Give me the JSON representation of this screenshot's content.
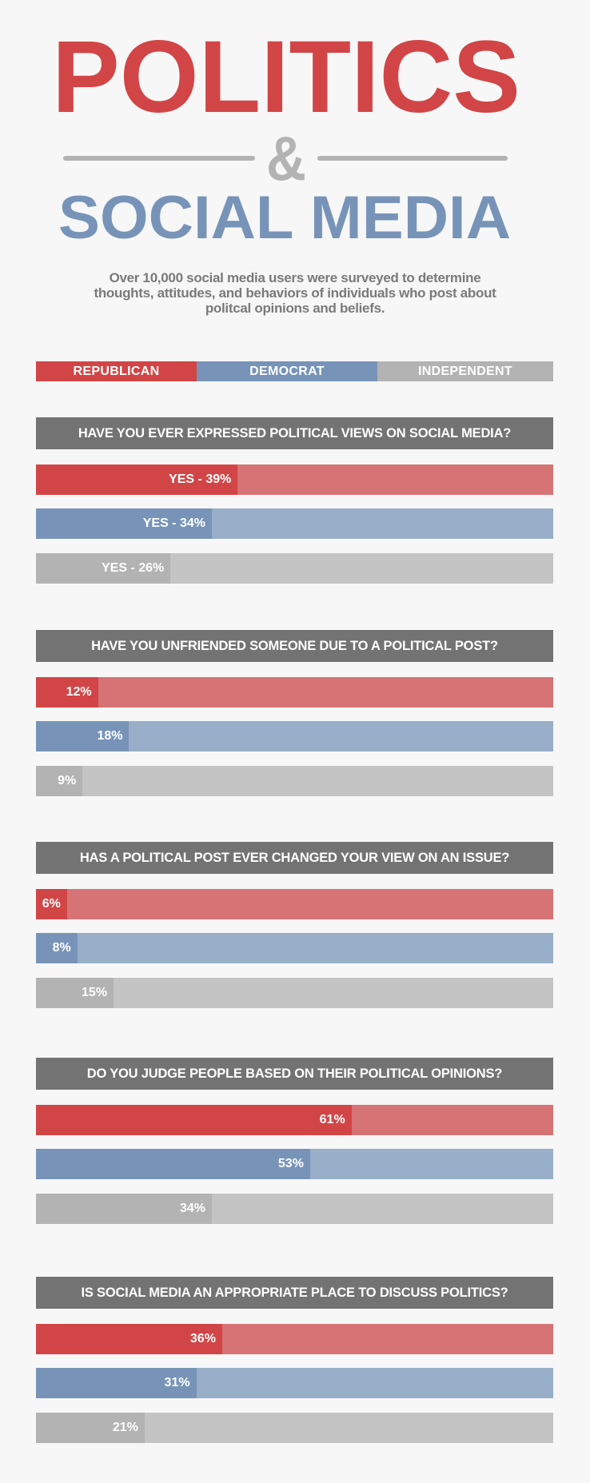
{
  "header": {
    "title_top": "POLITICS",
    "ampersand": "&",
    "title_bottom": "SOCIAL MEDIA",
    "intro": "Over 10,000 social media users were surveyed to determine thoughts, attitudes, and behaviors of individuals who post about politcal opinions and beliefs."
  },
  "colors": {
    "background": "#f7f7f7",
    "republican": "#d24546",
    "republican_light": "#d67374",
    "democrat": "#7794b8",
    "democrat_light": "#98aec9",
    "independent": "#b3b3b3",
    "independent_light": "#c4c4c4",
    "question_bg": "#737373"
  },
  "chart_data": {
    "type": "bar",
    "orientation": "horizontal",
    "legend": [
      "REPUBLICAN",
      "DEMOCRAT",
      "INDEPENDENT"
    ],
    "legend_placement": "top",
    "xlim": [
      0,
      100
    ],
    "questions": [
      {
        "title": "HAVE YOU EVER EXPRESSED POLITICAL VIEWS ON SOCIAL MEDIA?",
        "values": [
          39,
          34,
          26
        ],
        "labels": [
          "YES - 39%",
          "YES - 34%",
          "YES - 26%"
        ]
      },
      {
        "title": "HAVE YOU UNFRIENDED SOMEONE DUE TO A POLITICAL POST?",
        "values": [
          12,
          18,
          9
        ],
        "labels": [
          "12%",
          "18%",
          "9%"
        ]
      },
      {
        "title": "HAS A POLITICAL POST EVER CHANGED YOUR VIEW ON AN ISSUE?",
        "values": [
          6,
          8,
          15
        ],
        "labels": [
          "6%",
          "8%",
          "15%"
        ]
      },
      {
        "title": "DO YOU JUDGE PEOPLE BASED ON THEIR POLITICAL OPINIONS?",
        "values": [
          61,
          53,
          34
        ],
        "labels": [
          "61%",
          "53%",
          "34%"
        ]
      },
      {
        "title": "IS SOCIAL MEDIA AN APPROPRIATE PLACE TO DISCUSS POLITICS?",
        "values": [
          36,
          31,
          21
        ],
        "labels": [
          "36%",
          "31%",
          "21%"
        ]
      }
    ]
  }
}
